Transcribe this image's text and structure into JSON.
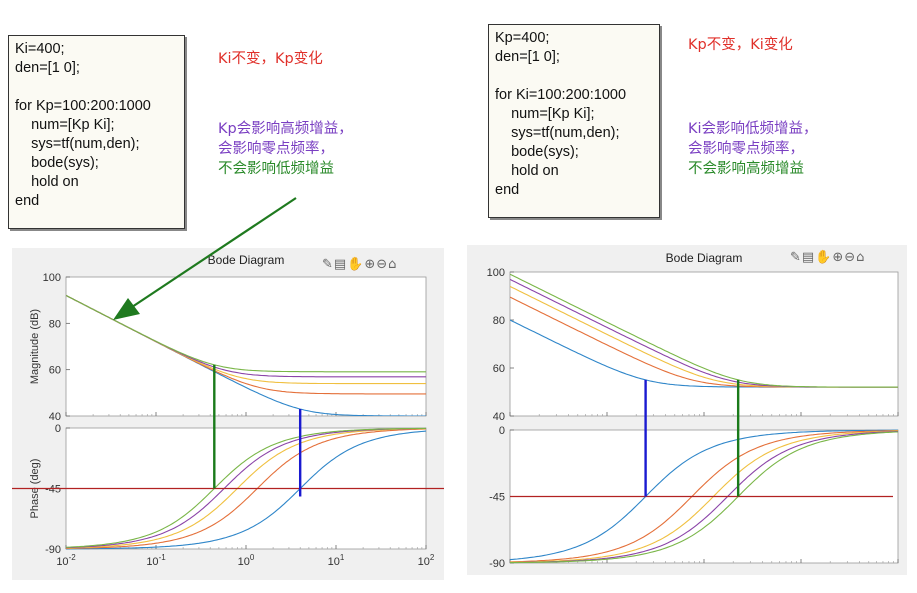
{
  "left": {
    "code_lines": [
      "Ki=400;",
      "den=[1 0];",
      "",
      "for Kp=100:200:1000",
      "    num=[Kp Ki];",
      "    sys=tf(num,den);",
      "    bode(sys);",
      "    hold on",
      "end"
    ],
    "note_title": "Ki不变，Kp变化",
    "note_lines": [
      "Kp会影响高频增益，",
      "会影响零点频率，"
    ],
    "note_line_green": "不会影响低频增益"
  },
  "right": {
    "code_lines": [
      "Kp=400;",
      "den=[1 0];",
      "",
      "for Ki=100:200:1000",
      "    num=[Kp Ki];",
      "    sys=tf(num,den);",
      "    bode(sys);",
      "    hold on",
      "end"
    ],
    "note_title": "Kp不变，Ki变化",
    "note_lines": [
      "Ki会影响低频增益，",
      "会影响零点频率，"
    ],
    "note_line_green": "不会影响高频增益"
  },
  "toolbar_icons": [
    "edit-icon",
    "save-icon",
    "pan-icon",
    "zoom-in-icon",
    "zoom-out-icon",
    "home-icon"
  ],
  "toolbar_glyphs": "✎▤✋⊕⊖⌂",
  "chart_data": [
    {
      "type": "line",
      "title": "Bode Diagram",
      "subplots": [
        "magnitude",
        "phase"
      ],
      "ylabel_mag": "Magnitude (dB)",
      "ylabel_phase": "Phase (deg)",
      "x_scale": "log",
      "xlim": [
        0.01,
        100
      ],
      "x_ticks": [
        "10-2",
        "10-1",
        "100",
        "101",
        "102"
      ],
      "ylim_mag": [
        40,
        100
      ],
      "y_ticks_mag": [
        "100",
        "80",
        "60",
        "40"
      ],
      "ylim_phase": [
        -90,
        0
      ],
      "y_ticks_phase": [
        "0",
        "-45",
        "-90"
      ],
      "fixed": {
        "Ki": 400
      },
      "varying": "Kp",
      "series_params": [
        100,
        300,
        500,
        700,
        900
      ],
      "series_colors": [
        "#2f86c9",
        "#e4703a",
        "#f0c040",
        "#8b44a8",
        "#7ab648"
      ],
      "reference_phase": -45,
      "reference_color": "#b22222",
      "marker_lines": [
        {
          "color": "#1a1ad0",
          "x": 4.0
        },
        {
          "color": "#1a7a1a",
          "x": 0.4444
        }
      ],
      "annotation_arrow": "green"
    },
    {
      "type": "line",
      "title": "Bode Diagram",
      "subplots": [
        "magnitude",
        "phase"
      ],
      "x_scale": "log",
      "xlim": [
        0.01,
        100
      ],
      "ylim_mag": [
        40,
        100
      ],
      "y_ticks_mag": [
        "100",
        "80",
        "60",
        "40"
      ],
      "ylim_phase": [
        -90,
        0
      ],
      "y_ticks_phase": [
        "0",
        "-45",
        "-90"
      ],
      "fixed": {
        "Kp": 400
      },
      "varying": "Ki",
      "series_params": [
        100,
        300,
        500,
        700,
        900
      ],
      "series_colors": [
        "#2f86c9",
        "#e4703a",
        "#f0c040",
        "#8b44a8",
        "#7ab648"
      ],
      "reference_phase": -45,
      "reference_color": "#b22222",
      "marker_lines": [
        {
          "color": "#1a1ad0",
          "x": 0.25
        },
        {
          "color": "#1a7a1a",
          "x": 2.25
        }
      ]
    }
  ]
}
